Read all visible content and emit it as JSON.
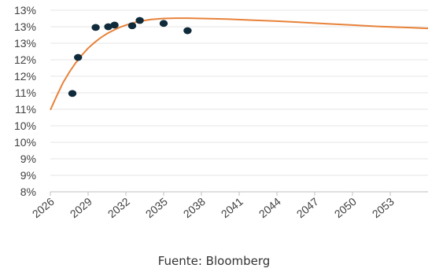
{
  "chart_data": {
    "type": "scatter",
    "x_axis": {
      "min": 2026,
      "max": 2056,
      "ticks": [
        2026,
        2029,
        2032,
        2035,
        2038,
        2041,
        2044,
        2047,
        2050,
        2053
      ],
      "tick_labels": [
        "2026",
        "2029",
        "2032",
        "2035",
        "2038",
        "2041",
        "2044",
        "2047",
        "2050",
        "2053"
      ]
    },
    "y_axis": {
      "min": 8.0,
      "max": 13.5,
      "ticks": [
        8.0,
        8.5,
        9.0,
        9.5,
        10.0,
        10.5,
        11.0,
        11.5,
        12.0,
        12.5,
        13.0,
        13.5
      ],
      "tick_labels": [
        "8%",
        "9%",
        "9%",
        "10%",
        "10%",
        "11%",
        "11%",
        "12%",
        "12%",
        "13%",
        "13%",
        "13%"
      ]
    },
    "grid": true,
    "series": [
      {
        "kind": "points",
        "color": "#0f2a3a",
        "points": [
          {
            "x": 2027.75,
            "y": 10.98
          },
          {
            "x": 2028.2,
            "y": 12.07
          },
          {
            "x": 2029.6,
            "y": 12.98
          },
          {
            "x": 2030.6,
            "y": 13.0
          },
          {
            "x": 2031.1,
            "y": 13.05
          },
          {
            "x": 2032.5,
            "y": 13.03
          },
          {
            "x": 2033.1,
            "y": 13.19
          },
          {
            "x": 2035.0,
            "y": 13.1
          },
          {
            "x": 2036.9,
            "y": 12.88
          }
        ]
      },
      {
        "kind": "curve",
        "color": "#e8823a",
        "points": [
          {
            "x": 2026.0,
            "y": 10.48
          },
          {
            "x": 2026.5,
            "y": 10.9
          },
          {
            "x": 2027.0,
            "y": 11.3
          },
          {
            "x": 2027.5,
            "y": 11.62
          },
          {
            "x": 2028.0,
            "y": 11.9
          },
          {
            "x": 2028.5,
            "y": 12.14
          },
          {
            "x": 2029.0,
            "y": 12.35
          },
          {
            "x": 2029.5,
            "y": 12.52
          },
          {
            "x": 2030.0,
            "y": 12.67
          },
          {
            "x": 2030.5,
            "y": 12.79
          },
          {
            "x": 2031.0,
            "y": 12.89
          },
          {
            "x": 2031.5,
            "y": 12.98
          },
          {
            "x": 2032.0,
            "y": 13.05
          },
          {
            "x": 2032.5,
            "y": 13.11
          },
          {
            "x": 2033.0,
            "y": 13.16
          },
          {
            "x": 2033.5,
            "y": 13.19
          },
          {
            "x": 2034.0,
            "y": 13.22
          },
          {
            "x": 2035.0,
            "y": 13.25
          },
          {
            "x": 2036.0,
            "y": 13.26
          },
          {
            "x": 2037.0,
            "y": 13.26
          },
          {
            "x": 2038.0,
            "y": 13.25
          },
          {
            "x": 2040.0,
            "y": 13.23
          },
          {
            "x": 2042.0,
            "y": 13.2
          },
          {
            "x": 2044.0,
            "y": 13.17
          },
          {
            "x": 2046.0,
            "y": 13.13
          },
          {
            "x": 2048.0,
            "y": 13.09
          },
          {
            "x": 2050.0,
            "y": 13.05
          },
          {
            "x": 2052.0,
            "y": 13.01
          },
          {
            "x": 2054.0,
            "y": 12.98
          },
          {
            "x": 2056.0,
            "y": 12.95
          }
        ]
      }
    ],
    "source": "Fuente: Bloomberg"
  }
}
